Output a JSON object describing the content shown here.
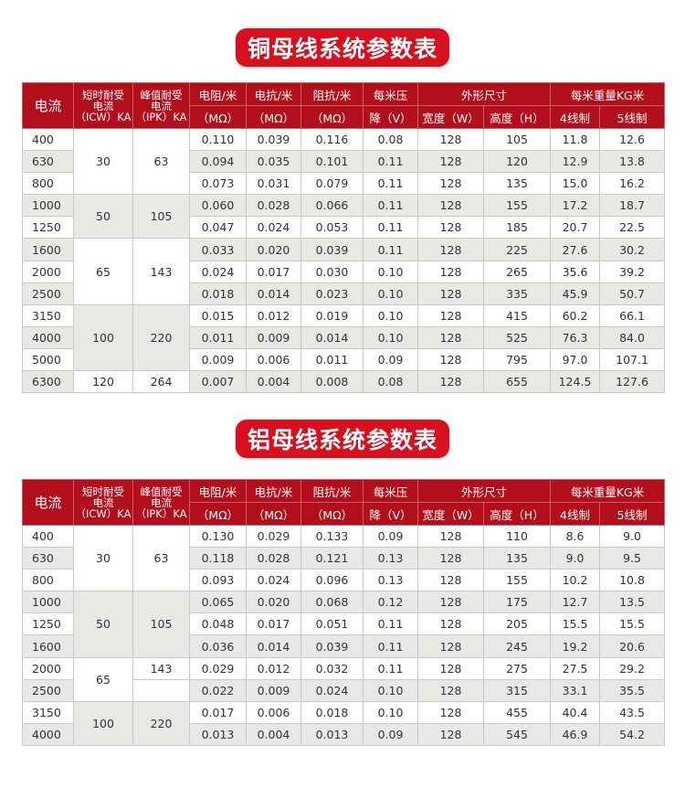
{
  "copper": {
    "title": "铜母线系统参数表",
    "header": {
      "current": "电流",
      "icw_line1": "短时耐受",
      "icw_line2": "电流",
      "icw_line3": "（ICW）KA",
      "ipk_line1": "峰值耐受",
      "ipk_line2": "电流",
      "ipk_line3": "（IPK）KA",
      "resistance": "电阻/米",
      "reactance": "电抗/米",
      "impedance": "阻抗/米",
      "unit_mohm": "（MΩ）",
      "drop_line1": "每米压",
      "drop_line2": "降（V）",
      "dims": "外形尺寸",
      "width": "宽度（W）",
      "height": "高度（H）",
      "weight": "每米重量KG米",
      "w4": "4线制",
      "w5": "5线制"
    },
    "groups": [
      {
        "icw": "30",
        "ipk": "63"
      },
      {
        "icw": "50",
        "ipk": "105"
      },
      {
        "icw": "65",
        "ipk": "143"
      },
      {
        "icw": "100",
        "ipk": "220"
      },
      {
        "icw": "120",
        "ipk": "264"
      }
    ],
    "rows": [
      {
        "current": "400",
        "r": "0.110",
        "x": "0.039",
        "z": "0.116",
        "v": "0.08",
        "w": "128",
        "h": "105",
        "w4": "11.8",
        "w5": "12.6"
      },
      {
        "current": "630",
        "r": "0.094",
        "x": "0.035",
        "z": "0.101",
        "v": "0.11",
        "w": "128",
        "h": "120",
        "w4": "12.9",
        "w5": "13.8"
      },
      {
        "current": "800",
        "r": "0.073",
        "x": "0.031",
        "z": "0.079",
        "v": "0.11",
        "w": "128",
        "h": "135",
        "w4": "15.0",
        "w5": "16.2"
      },
      {
        "current": "1000",
        "r": "0.060",
        "x": "0.028",
        "z": "0.066",
        "v": "0.11",
        "w": "128",
        "h": "155",
        "w4": "17.2",
        "w5": "18.7"
      },
      {
        "current": "1250",
        "r": "0.047",
        "x": "0.024",
        "z": "0.053",
        "v": "0.11",
        "w": "128",
        "h": "185",
        "w4": "20.7",
        "w5": "22.5"
      },
      {
        "current": "1600",
        "r": "0.033",
        "x": "0.020",
        "z": "0.039",
        "v": "0.11",
        "w": "128",
        "h": "225",
        "w4": "27.6",
        "w5": "30.2"
      },
      {
        "current": "2000",
        "r": "0.024",
        "x": "0.017",
        "z": "0.030",
        "v": "0.10",
        "w": "128",
        "h": "265",
        "w4": "35.6",
        "w5": "39.2"
      },
      {
        "current": "2500",
        "r": "0.018",
        "x": "0.014",
        "z": "0.023",
        "v": "0.10",
        "w": "128",
        "h": "335",
        "w4": "45.9",
        "w5": "50.7"
      },
      {
        "current": "3150",
        "r": "0.015",
        "x": "0.012",
        "z": "0.019",
        "v": "0.10",
        "w": "128",
        "h": "415",
        "w4": "60.2",
        "w5": "66.1"
      },
      {
        "current": "4000",
        "r": "0.011",
        "x": "0.009",
        "z": "0.014",
        "v": "0.10",
        "w": "128",
        "h": "525",
        "w4": "76.3",
        "w5": "84.0"
      },
      {
        "current": "5000",
        "r": "0.009",
        "x": "0.006",
        "z": "0.011",
        "v": "0.09",
        "w": "128",
        "h": "795",
        "w4": "97.0",
        "w5": "107.1"
      },
      {
        "current": "6300",
        "r": "0.007",
        "x": "0.004",
        "z": "0.008",
        "v": "0.08",
        "w": "128",
        "h": "655",
        "w4": "124.5",
        "w5": "127.6"
      }
    ]
  },
  "aluminum": {
    "title": "铝母线系统参数表",
    "header": {
      "current": "电流",
      "icw_line1": "短时耐受",
      "icw_line2": "电流",
      "icw_line3": "（ICW）KA",
      "ipk_line1": "峰值耐受",
      "ipk_line2": "电流",
      "ipk_line3": "（IPK）KA",
      "resistance": "电阻/米",
      "reactance": "电抗/米",
      "impedance": "阻抗/米",
      "unit_mohm": "（MΩ）",
      "drop_line1": "每米压",
      "drop_line2": "降（V）",
      "dims": "外形尺寸",
      "width": "宽度（W）",
      "height": "高度（H）",
      "weight": "每米重量KG米",
      "w4": "4线制",
      "w5": "5线制"
    },
    "groups": [
      {
        "icw": "30",
        "ipk": "63"
      },
      {
        "icw": "50",
        "ipk": "105"
      },
      {
        "icw": "65",
        "ipk": "143"
      },
      {
        "icw": "100",
        "ipk": "220"
      }
    ],
    "rows": [
      {
        "current": "400",
        "r": "0.130",
        "x": "0.029",
        "z": "0.133",
        "v": "0.09",
        "w": "128",
        "h": "110",
        "w4": "8.6",
        "w5": "9.0"
      },
      {
        "current": "630",
        "r": "0.118",
        "x": "0.028",
        "z": "0.121",
        "v": "0.13",
        "w": "128",
        "h": "135",
        "w4": "9.0",
        "w5": "9.5"
      },
      {
        "current": "800",
        "r": "0.093",
        "x": "0.024",
        "z": "0.096",
        "v": "0.13",
        "w": "128",
        "h": "155",
        "w4": "10.2",
        "w5": "10.8"
      },
      {
        "current": "1000",
        "r": "0.065",
        "x": "0.020",
        "z": "0.068",
        "v": "0.12",
        "w": "128",
        "h": "175",
        "w4": "12.7",
        "w5": "13.5"
      },
      {
        "current": "1250",
        "r": "0.048",
        "x": "0.017",
        "z": "0.051",
        "v": "0.11",
        "w": "128",
        "h": "205",
        "w4": "15.5",
        "w5": "15.5"
      },
      {
        "current": "1600",
        "r": "0.036",
        "x": "0.014",
        "z": "0.039",
        "v": "0.11",
        "w": "128",
        "h": "245",
        "w4": "19.2",
        "w5": "20.6"
      },
      {
        "current": "2000",
        "r": "0.029",
        "x": "0.012",
        "z": "0.032",
        "v": "0.11",
        "w": "128",
        "h": "275",
        "w4": "27.5",
        "w5": "29.2"
      },
      {
        "current": "2500",
        "r": "0.022",
        "x": "0.009",
        "z": "0.024",
        "v": "0.10",
        "w": "128",
        "h": "315",
        "w4": "33.1",
        "w5": "35.5"
      },
      {
        "current": "3150",
        "r": "0.017",
        "x": "0.006",
        "z": "0.018",
        "v": "0.10",
        "w": "128",
        "h": "455",
        "w4": "40.4",
        "w5": "43.5"
      },
      {
        "current": "4000",
        "r": "0.013",
        "x": "0.004",
        "z": "0.013",
        "v": "0.09",
        "w": "128",
        "h": "545",
        "w4": "46.9",
        "w5": "54.2"
      }
    ]
  },
  "colors": {
    "title_bg": "#d8101e",
    "header_bg": "#b30e1b",
    "row_alt": "#e6e9e4"
  }
}
